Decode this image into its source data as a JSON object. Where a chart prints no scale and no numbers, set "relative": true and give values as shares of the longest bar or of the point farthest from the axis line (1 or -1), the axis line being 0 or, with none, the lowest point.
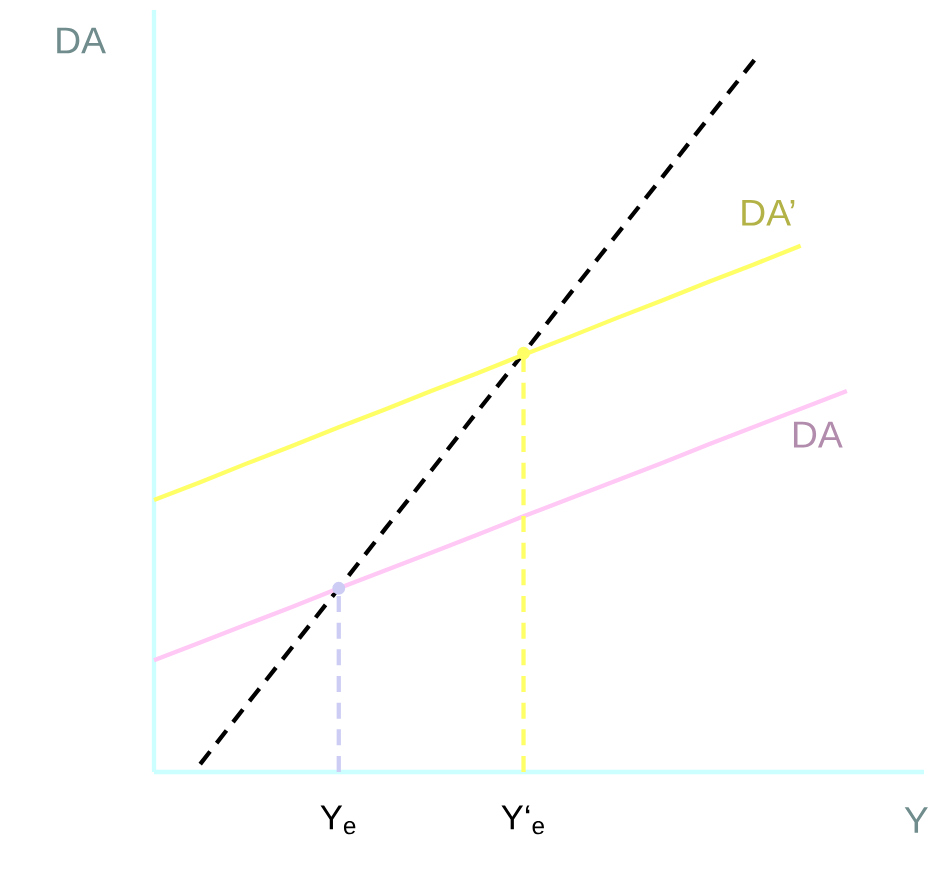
{
  "chart_data": {
    "type": "line",
    "relative": true,
    "xlabel": "Y",
    "ylabel": "DA",
    "categories": [
      null,
      null,
      null,
      null,
      "Y$_{e}$",
      null,
      null,
      null,
      "Y‘$_{e}$",
      null,
      null,
      null,
      null,
      null,
      null,
      null
    ],
    "series": [
      {
        "color": "#000000",
        "line_style": "dashed",
        "values": [
          null,
          0.011,
          0.094,
          0.176,
          0.258,
          0.341,
          0.423,
          0.506,
          0.588,
          0.671,
          0.753,
          0.835,
          0.918,
          1.0,
          null,
          null
        ]
      },
      {
        "name": "DA’",
        "color": "#ffff66",
        "values": [
          0.382,
          0.407,
          0.433,
          0.458,
          0.484,
          0.509,
          0.535,
          0.56,
          0.586,
          0.611,
          0.637,
          0.662,
          0.688,
          0.713,
          0.739,
          null
        ]
      },
      {
        "name": "DA",
        "color": "#ffc8f5",
        "values": [
          0.157,
          0.182,
          0.207,
          0.232,
          0.258,
          0.283,
          0.308,
          0.333,
          0.359,
          0.384,
          0.409,
          0.434,
          0.46,
          0.485,
          0.51,
          0.535
        ]
      },
      {
        "type": "lollipop",
        "marker": "circle",
        "color": "#ccccf5",
        "line_style": "dashed",
        "values": [
          null,
          null,
          null,
          null,
          0.258,
          null,
          null,
          null,
          null,
          null,
          null,
          null,
          null,
          null,
          null,
          null
        ]
      },
      {
        "type": "lollipop",
        "marker": "circle",
        "color": "#ffff66",
        "line_style": "dashed",
        "values": [
          null,
          null,
          null,
          null,
          null,
          null,
          null,
          null,
          0.588,
          null,
          null,
          null,
          null,
          null,
          null,
          null
        ]
      }
    ]
  }
}
